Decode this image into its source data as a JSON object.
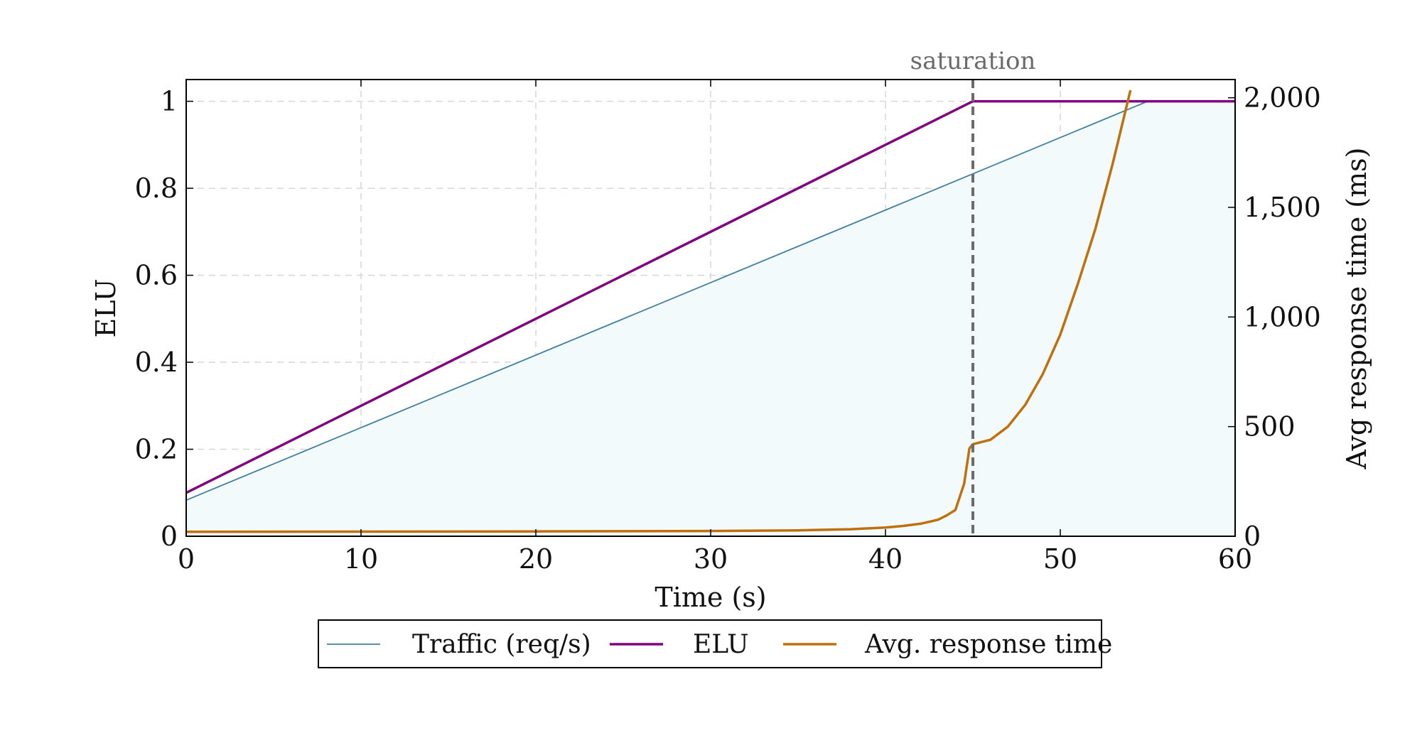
{
  "chart_data": {
    "type": "line",
    "xlabel": "Time (s)",
    "ylabel_left": "ELU",
    "ylabel_right": "Avg response time (ms)",
    "xlim": [
      0,
      60
    ],
    "ylim_left": [
      0,
      1.05
    ],
    "ylim_right": [
      0,
      2083
    ],
    "x_ticks": [
      0,
      10,
      20,
      30,
      40,
      50,
      60
    ],
    "x_tick_labels": [
      "0",
      "10",
      "20",
      "30",
      "40",
      "50",
      "60"
    ],
    "y_left_ticks": [
      0,
      0.2,
      0.4,
      0.6,
      0.8,
      1
    ],
    "y_left_tick_labels": [
      "0",
      "0.2",
      "0.4",
      "0.6",
      "0.8",
      "1"
    ],
    "y_right_ticks": [
      0,
      500,
      1000,
      1500,
      2000
    ],
    "y_right_tick_labels": [
      "0",
      "500",
      "1,000",
      "1,500",
      "2,000"
    ],
    "grid": true,
    "legend_position": "bottom-center",
    "annotation": {
      "label": "saturation",
      "x": 45
    },
    "series": [
      {
        "name": "Traffic (req/s)",
        "axis": "left",
        "color": "#3f7f9f",
        "fill": "#f3fafc",
        "style": "thin",
        "x": [
          0,
          55,
          60
        ],
        "y": [
          0.083,
          1.0,
          1.0
        ]
      },
      {
        "name": "ELU",
        "axis": "left",
        "color": "#800080",
        "style": "thick",
        "x": [
          0,
          45,
          60
        ],
        "y": [
          0.1,
          1.0,
          1.0
        ]
      },
      {
        "name": "Avg. response time",
        "axis": "right",
        "color": "#c0700a",
        "style": "thick",
        "x": [
          0,
          10,
          20,
          30,
          35,
          38,
          40,
          41,
          42,
          43,
          43.5,
          44,
          44.5,
          44.8,
          45,
          46,
          47,
          48,
          49,
          50,
          51,
          52,
          53,
          54
        ],
        "y": [
          20,
          21,
          22,
          24,
          27,
          32,
          40,
          47,
          57,
          75,
          95,
          120,
          240,
          400,
          420,
          440,
          500,
          600,
          740,
          920,
          1150,
          1400,
          1700,
          2030
        ]
      }
    ]
  }
}
